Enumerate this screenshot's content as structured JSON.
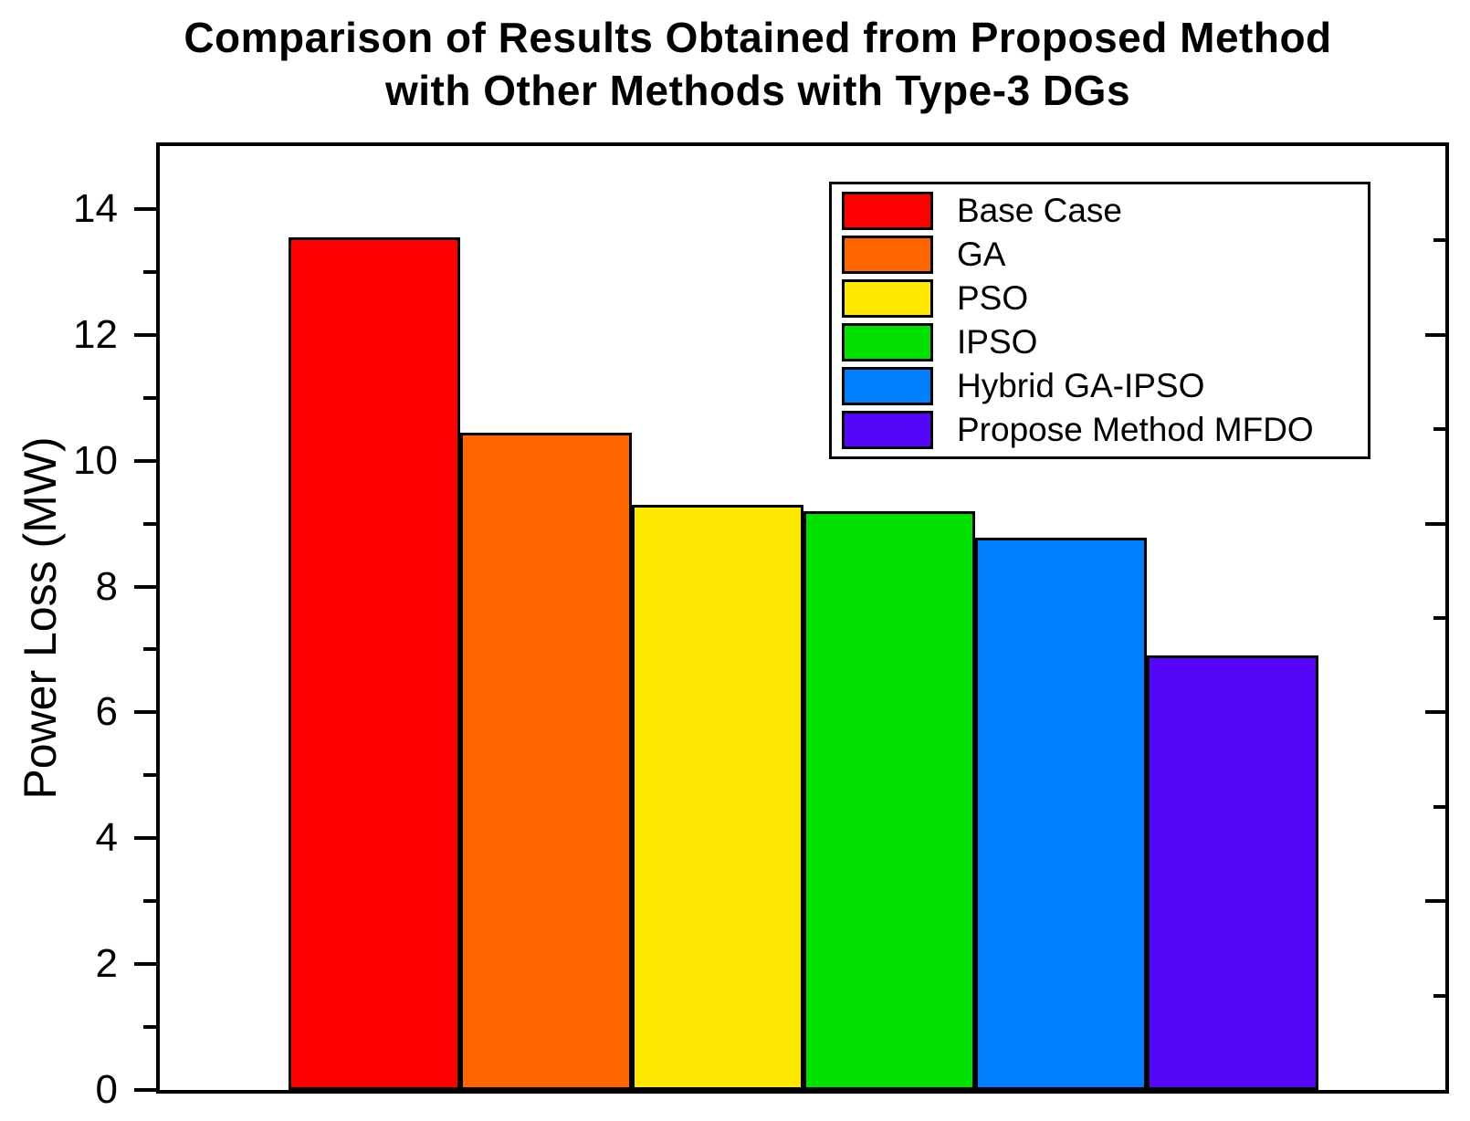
{
  "title": {
    "line1": "Comparison of Results Obtained from Proposed Method",
    "line2": "with Other Methods with Type-3 DGs"
  },
  "chart_data": {
    "type": "bar",
    "title": "Comparison of Results Obtained from Proposed Method with Other Methods with Type-3 DGs",
    "xlabel": "",
    "ylabel": "Power Loss (MW)",
    "ylim": [
      0,
      15
    ],
    "grid": false,
    "legend_position": "top-right-inside",
    "categories": [
      "Base Case",
      "GA",
      "PSO",
      "IPSO",
      "Hybrid GA-IPSO",
      "Propose Method MFDO"
    ],
    "values": [
      13.55,
      10.45,
      9.3,
      9.2,
      8.77,
      6.9
    ],
    "colors": [
      "#FF0000",
      "#FF6600",
      "#FFE800",
      "#00E100",
      "#0080FF",
      "#5505FA"
    ],
    "bar_outline_color": "#000000",
    "axis_color": "#000000",
    "y_major_ticks_left": [
      0,
      2,
      4,
      6,
      8,
      10,
      12,
      14
    ],
    "y_minor_ticks_left": [
      1,
      3,
      5,
      7,
      9,
      11,
      13
    ],
    "y_major_ticks_right": [
      3,
      6,
      9,
      12
    ],
    "y_minor_ticks_right": [
      1.5,
      4.5,
      7.5,
      10.5,
      13.5
    ]
  }
}
